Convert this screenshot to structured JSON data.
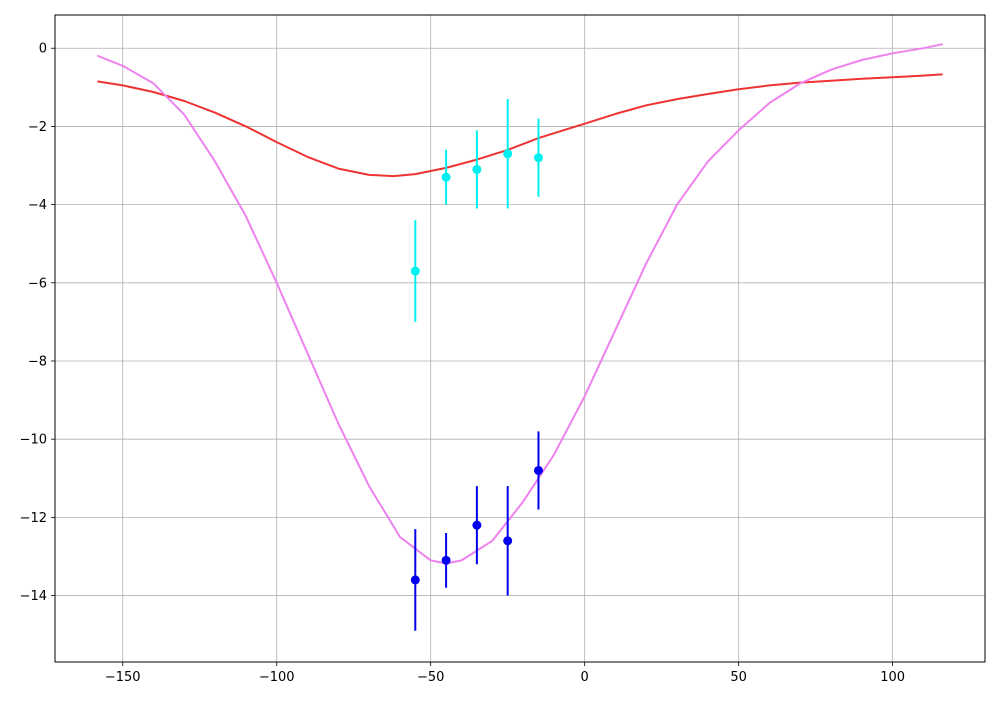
{
  "chart_data": {
    "type": "line",
    "title": "",
    "xlabel": "",
    "ylabel": "",
    "xlim": [
      -172,
      130
    ],
    "ylim": [
      -15.7,
      0.85
    ],
    "grid": true,
    "x_ticks": [
      {
        "value": -150,
        "label": "−150"
      },
      {
        "value": -100,
        "label": "−100"
      },
      {
        "value": -50,
        "label": "−50"
      },
      {
        "value": 0,
        "label": "0"
      },
      {
        "value": 50,
        "label": "50"
      },
      {
        "value": 100,
        "label": "100"
      }
    ],
    "y_ticks": [
      {
        "value": 0,
        "label": "0"
      },
      {
        "value": -2,
        "label": "−2"
      },
      {
        "value": -4,
        "label": "−4"
      },
      {
        "value": -6,
        "label": "−6"
      },
      {
        "value": -8,
        "label": "−8"
      },
      {
        "value": -10,
        "label": "−10"
      },
      {
        "value": -12,
        "label": "−12"
      },
      {
        "value": -14,
        "label": "−14"
      }
    ],
    "series": [
      {
        "kind": "line",
        "color": "#ee3333",
        "x": [
          -158,
          -150,
          -140,
          -130,
          -120,
          -110,
          -100,
          -90,
          -80,
          -70,
          -62,
          -55,
          -45,
          -35,
          -25,
          -15,
          -5,
          0,
          10,
          20,
          30,
          40,
          50,
          60,
          70,
          80,
          90,
          100,
          110,
          116
        ],
        "y": [
          -0.85,
          -0.95,
          -1.12,
          -1.35,
          -1.65,
          -2.0,
          -2.4,
          -2.78,
          -3.08,
          -3.24,
          -3.27,
          -3.22,
          -3.06,
          -2.85,
          -2.6,
          -2.3,
          -2.05,
          -1.93,
          -1.68,
          -1.46,
          -1.3,
          -1.17,
          -1.05,
          -0.95,
          -0.88,
          -0.83,
          -0.78,
          -0.74,
          -0.7,
          -0.67
        ]
      },
      {
        "kind": "line",
        "color": "#ee82ee",
        "x": [
          -158,
          -150,
          -140,
          -130,
          -120,
          -110,
          -100,
          -90,
          -80,
          -70,
          -60,
          -50,
          -45,
          -40,
          -30,
          -20,
          -10,
          0,
          10,
          20,
          30,
          40,
          50,
          60,
          70,
          80,
          90,
          100,
          110,
          116
        ],
        "y": [
          -0.2,
          -0.45,
          -0.9,
          -1.7,
          -2.9,
          -4.3,
          -6.0,
          -7.8,
          -9.6,
          -11.2,
          -12.5,
          -13.1,
          -13.18,
          -13.1,
          -12.6,
          -11.6,
          -10.4,
          -8.9,
          -7.2,
          -5.5,
          -4.0,
          -2.9,
          -2.1,
          -1.4,
          -0.9,
          -0.55,
          -0.3,
          -0.13,
          0.0,
          0.1
        ]
      },
      {
        "kind": "errorbar",
        "color": "#00f0f0",
        "x": [
          -55,
          -45,
          -35,
          -25,
          -15
        ],
        "y": [
          -5.7,
          -3.3,
          -3.1,
          -2.7,
          -2.8
        ],
        "yerr_low": [
          -7.0,
          -4.0,
          -4.1,
          -4.1,
          -3.8
        ],
        "yerr_high": [
          -4.4,
          -2.6,
          -2.1,
          -1.3,
          -1.8
        ]
      },
      {
        "kind": "errorbar",
        "color": "#0000ee",
        "x": [
          -55,
          -45,
          -35,
          -25,
          -15
        ],
        "y": [
          -13.6,
          -13.1,
          -12.2,
          -12.6,
          -10.8
        ],
        "yerr_low": [
          -14.9,
          -13.8,
          -13.2,
          -14.0,
          -11.8
        ],
        "yerr_high": [
          -12.3,
          -12.4,
          -11.2,
          -11.2,
          -9.8
        ]
      }
    ]
  }
}
